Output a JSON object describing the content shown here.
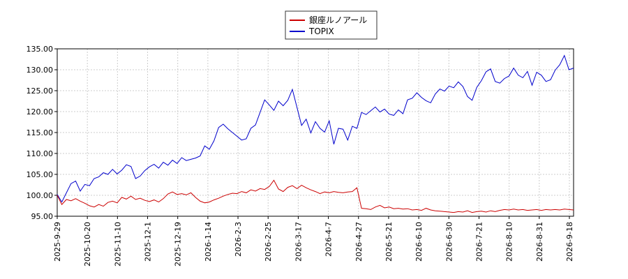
{
  "chart_data": {
    "type": "line",
    "title": "",
    "xlabel": "",
    "ylabel": "",
    "ylim": [
      95,
      135
    ],
    "yticks": [
      "95.00",
      "100.00",
      "105.00",
      "110.00",
      "115.00",
      "120.00",
      "125.00",
      "130.00",
      "135.00"
    ],
    "xticks": [
      "2025-9-29",
      "2025-10-20",
      "2025-11-10",
      "2025-12-1",
      "2025-12-19",
      "2026-1-14",
      "2026-2-3",
      "2026-2-25",
      "2026-3-17",
      "2026-4-7",
      "2026-4-27",
      "2026-5-21",
      "2026-6-10",
      "2026-6-30",
      "2026-7-21",
      "2026-8-10",
      "2026-8-31",
      "2026-9-18"
    ],
    "grid": true,
    "legend_position": "top-center",
    "series": [
      {
        "name": "銀座ルノアール",
        "color": "#cc0000",
        "points": [
          [
            0,
            100.0
          ],
          [
            1,
            97.8
          ],
          [
            2,
            99.0
          ],
          [
            3,
            98.7
          ],
          [
            4,
            99.2
          ],
          [
            5,
            98.6
          ],
          [
            6,
            98.1
          ],
          [
            7,
            97.5
          ],
          [
            8,
            97.2
          ],
          [
            9,
            97.8
          ],
          [
            10,
            97.4
          ],
          [
            11,
            98.3
          ],
          [
            12,
            98.6
          ],
          [
            13,
            98.2
          ],
          [
            14,
            99.5
          ],
          [
            15,
            99.1
          ],
          [
            16,
            99.8
          ],
          [
            17,
            99.0
          ],
          [
            18,
            99.3
          ],
          [
            19,
            98.8
          ],
          [
            20,
            98.5
          ],
          [
            21,
            98.9
          ],
          [
            22,
            98.4
          ],
          [
            23,
            99.2
          ],
          [
            24,
            100.3
          ],
          [
            25,
            100.8
          ],
          [
            26,
            100.2
          ],
          [
            27,
            100.4
          ],
          [
            28,
            100.1
          ],
          [
            29,
            100.6
          ],
          [
            30,
            99.5
          ],
          [
            31,
            98.6
          ],
          [
            32,
            98.2
          ],
          [
            33,
            98.4
          ],
          [
            34,
            98.9
          ],
          [
            35,
            99.3
          ],
          [
            36,
            99.8
          ],
          [
            37,
            100.2
          ],
          [
            38,
            100.5
          ],
          [
            39,
            100.4
          ],
          [
            40,
            100.9
          ],
          [
            41,
            100.6
          ],
          [
            42,
            101.3
          ],
          [
            43,
            101.0
          ],
          [
            44,
            101.6
          ],
          [
            45,
            101.4
          ],
          [
            46,
            102.1
          ],
          [
            47,
            103.6
          ],
          [
            48,
            101.5
          ],
          [
            49,
            100.9
          ],
          [
            50,
            101.9
          ],
          [
            51,
            102.3
          ],
          [
            52,
            101.6
          ],
          [
            53,
            102.4
          ],
          [
            54,
            101.8
          ],
          [
            55,
            101.3
          ],
          [
            56,
            100.9
          ],
          [
            57,
            100.4
          ],
          [
            58,
            100.8
          ],
          [
            59,
            100.6
          ],
          [
            60,
            100.9
          ],
          [
            61,
            100.7
          ],
          [
            62,
            100.6
          ],
          [
            63,
            100.8
          ],
          [
            64,
            100.9
          ],
          [
            65,
            101.8
          ],
          [
            66,
            96.9
          ],
          [
            67,
            96.8
          ],
          [
            68,
            96.6
          ],
          [
            69,
            97.2
          ],
          [
            70,
            97.6
          ],
          [
            71,
            97.0
          ],
          [
            72,
            97.2
          ],
          [
            73,
            96.8
          ],
          [
            74,
            96.9
          ],
          [
            75,
            96.7
          ],
          [
            76,
            96.8
          ],
          [
            77,
            96.5
          ],
          [
            78,
            96.6
          ],
          [
            79,
            96.4
          ],
          [
            80,
            96.9
          ],
          [
            81,
            96.5
          ],
          [
            82,
            96.3
          ],
          [
            83,
            96.2
          ],
          [
            84,
            96.1
          ],
          [
            85,
            96.0
          ],
          [
            86,
            95.9
          ],
          [
            87,
            96.1
          ],
          [
            88,
            96.0
          ],
          [
            89,
            96.3
          ],
          [
            90,
            95.9
          ],
          [
            91,
            96.1
          ],
          [
            92,
            96.2
          ],
          [
            93,
            96.0
          ],
          [
            94,
            96.3
          ],
          [
            95,
            96.1
          ],
          [
            96,
            96.4
          ],
          [
            97,
            96.6
          ],
          [
            98,
            96.5
          ],
          [
            99,
            96.7
          ],
          [
            100,
            96.5
          ],
          [
            101,
            96.6
          ],
          [
            102,
            96.4
          ],
          [
            103,
            96.5
          ],
          [
            104,
            96.6
          ],
          [
            105,
            96.4
          ],
          [
            106,
            96.6
          ],
          [
            107,
            96.5
          ],
          [
            108,
            96.6
          ],
          [
            109,
            96.5
          ],
          [
            110,
            96.7
          ],
          [
            111,
            96.6
          ],
          [
            112,
            96.5
          ]
        ]
      },
      {
        "name": "TOPIX",
        "color": "#0000cc",
        "points": [
          [
            0,
            100.2
          ],
          [
            1,
            98.4
          ],
          [
            2,
            100.6
          ],
          [
            3,
            102.8
          ],
          [
            4,
            103.4
          ],
          [
            5,
            101.0
          ],
          [
            6,
            102.6
          ],
          [
            7,
            102.3
          ],
          [
            8,
            104.0
          ],
          [
            9,
            104.4
          ],
          [
            10,
            105.4
          ],
          [
            11,
            105.0
          ],
          [
            12,
            106.2
          ],
          [
            13,
            105.1
          ],
          [
            14,
            106.0
          ],
          [
            15,
            107.3
          ],
          [
            16,
            106.9
          ],
          [
            17,
            104.0
          ],
          [
            18,
            104.6
          ],
          [
            19,
            105.9
          ],
          [
            20,
            106.8
          ],
          [
            21,
            107.4
          ],
          [
            22,
            106.5
          ],
          [
            23,
            107.9
          ],
          [
            24,
            107.2
          ],
          [
            25,
            108.4
          ],
          [
            26,
            107.6
          ],
          [
            27,
            109.0
          ],
          [
            28,
            108.3
          ],
          [
            29,
            108.6
          ],
          [
            30,
            108.9
          ],
          [
            31,
            109.4
          ],
          [
            32,
            111.8
          ],
          [
            33,
            111.0
          ],
          [
            34,
            113.0
          ],
          [
            35,
            116.2
          ],
          [
            36,
            117.0
          ],
          [
            37,
            115.9
          ],
          [
            38,
            115.0
          ],
          [
            39,
            114.1
          ],
          [
            40,
            113.2
          ],
          [
            41,
            113.5
          ],
          [
            42,
            116.0
          ],
          [
            43,
            116.8
          ],
          [
            44,
            119.8
          ],
          [
            45,
            122.8
          ],
          [
            46,
            121.6
          ],
          [
            47,
            120.3
          ],
          [
            48,
            122.5
          ],
          [
            49,
            121.4
          ],
          [
            50,
            122.7
          ],
          [
            51,
            125.3
          ],
          [
            52,
            121.0
          ],
          [
            53,
            116.7
          ],
          [
            54,
            118.2
          ],
          [
            55,
            114.9
          ],
          [
            56,
            117.6
          ],
          [
            57,
            116.0
          ],
          [
            58,
            115.1
          ],
          [
            59,
            117.8
          ],
          [
            60,
            112.2
          ],
          [
            61,
            116.0
          ],
          [
            62,
            115.8
          ],
          [
            63,
            113.2
          ],
          [
            64,
            116.5
          ],
          [
            65,
            116.0
          ],
          [
            66,
            119.8
          ],
          [
            67,
            119.3
          ],
          [
            68,
            120.2
          ],
          [
            69,
            121.1
          ],
          [
            70,
            119.9
          ],
          [
            71,
            120.6
          ],
          [
            72,
            119.4
          ],
          [
            73,
            119.1
          ],
          [
            74,
            120.4
          ],
          [
            75,
            119.5
          ],
          [
            76,
            122.8
          ],
          [
            77,
            123.2
          ],
          [
            78,
            124.5
          ],
          [
            79,
            123.4
          ],
          [
            80,
            122.6
          ],
          [
            81,
            122.1
          ],
          [
            82,
            124.2
          ],
          [
            83,
            125.4
          ],
          [
            84,
            124.9
          ],
          [
            85,
            126.1
          ],
          [
            86,
            125.7
          ],
          [
            87,
            127.1
          ],
          [
            88,
            126.0
          ],
          [
            89,
            123.6
          ],
          [
            90,
            122.7
          ],
          [
            91,
            125.8
          ],
          [
            92,
            127.4
          ],
          [
            93,
            129.5
          ],
          [
            94,
            130.2
          ],
          [
            95,
            127.2
          ],
          [
            96,
            126.8
          ],
          [
            97,
            127.9
          ],
          [
            98,
            128.5
          ],
          [
            99,
            130.4
          ],
          [
            100,
            128.7
          ],
          [
            101,
            128.1
          ],
          [
            102,
            129.6
          ],
          [
            103,
            126.3
          ],
          [
            104,
            129.4
          ],
          [
            105,
            128.7
          ],
          [
            106,
            127.2
          ],
          [
            107,
            127.6
          ],
          [
            108,
            129.9
          ],
          [
            109,
            131.2
          ],
          [
            110,
            133.4
          ],
          [
            111,
            130.0
          ],
          [
            112,
            130.4
          ]
        ]
      }
    ]
  }
}
